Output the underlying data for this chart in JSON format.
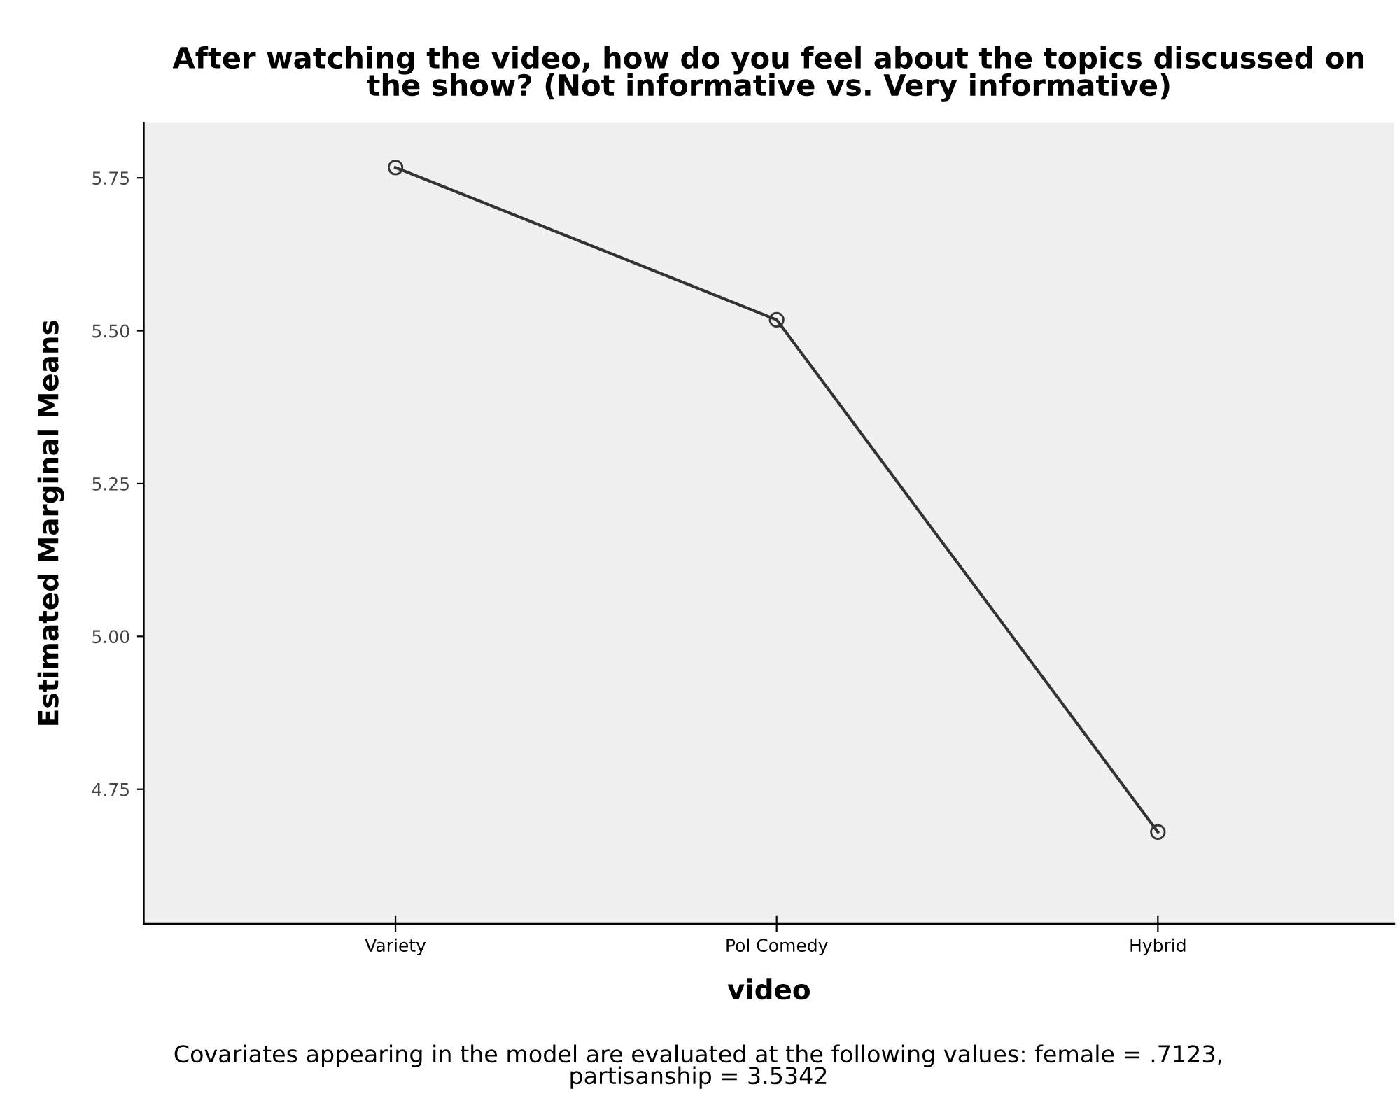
{
  "chart_data": {
    "type": "line",
    "title": "After watching the video, how do you feel about the topics discussed on\nthe show? (Not informative vs. Very informative)",
    "xlabel": "video",
    "ylabel": "Estimated Marginal Means",
    "categories": [
      "Variety",
      "Pol Comedy",
      "Hybrid"
    ],
    "series": [
      {
        "color": "#333333",
        "values": [
          5.767,
          5.518,
          4.68
        ]
      }
    ],
    "ylim": [
      4.53,
      5.84
    ],
    "yticks": [
      {
        "value": 4.75,
        "label": "4.75"
      },
      {
        "value": 5.0,
        "label": "5.00"
      },
      {
        "value": 5.25,
        "label": "5.25"
      },
      {
        "value": 5.5,
        "label": "5.50"
      },
      {
        "value": 5.75,
        "label": "5.75"
      }
    ],
    "marker": "circle",
    "line_style": "solid",
    "grid": false,
    "legend": false,
    "annotations": [
      "Covariates appearing in the model are evaluated at the following values: female = .7123,\npartisanship = 3.5342"
    ]
  }
}
